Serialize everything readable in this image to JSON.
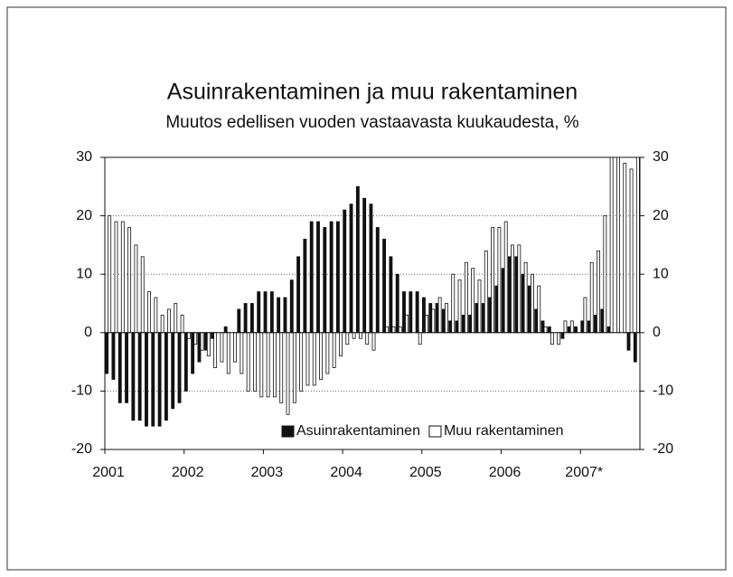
{
  "chart_data": {
    "type": "bar",
    "title": "Asuinrakentaminen ja muu rakentaminen",
    "subtitle": "Muutos edellisen vuoden vastaavasta kuukaudesta, %",
    "categories": [
      "2001",
      null,
      null,
      null,
      null,
      null,
      null,
      null,
      null,
      null,
      null,
      null,
      "2002",
      null,
      null,
      null,
      null,
      null,
      null,
      null,
      null,
      null,
      null,
      null,
      "2003",
      null,
      null,
      null,
      null,
      null,
      null,
      null,
      null,
      null,
      null,
      null,
      "2004",
      null,
      null,
      null,
      null,
      null,
      null,
      null,
      null,
      null,
      null,
      null,
      "2005",
      null,
      null,
      null,
      null,
      null,
      null,
      null,
      null,
      null,
      null,
      null,
      "2006",
      null,
      null,
      null,
      null,
      null,
      null,
      null,
      null,
      null,
      null,
      null,
      "2007*",
      null,
      null,
      null,
      null,
      null,
      null,
      null,
      null
    ],
    "series": [
      {
        "name": "Asuinrakentaminen",
        "color": "#111111",
        "values": [
          -7,
          -8,
          -12,
          -12,
          -15,
          -15,
          -16,
          -16,
          -16,
          -15,
          -13,
          -12,
          -10,
          -7,
          -5,
          -3,
          -1,
          0,
          1,
          0,
          4,
          5,
          5,
          7,
          7,
          7,
          6,
          6,
          9,
          13,
          16,
          19,
          19,
          18,
          19,
          19,
          21,
          22,
          25,
          23,
          22,
          18,
          16,
          13,
          10,
          7,
          7,
          7,
          6,
          5,
          5,
          4,
          2,
          2,
          3,
          3,
          5,
          5,
          6,
          8,
          11,
          13,
          13,
          10,
          8,
          4,
          2,
          1,
          0,
          -1,
          1,
          1,
          2,
          2,
          3,
          4,
          1,
          0,
          0,
          -3,
          -5
        ]
      },
      {
        "name": "Muu rakentaminen",
        "color": "#ffffff",
        "values": [
          20,
          19,
          19,
          18,
          15,
          13,
          7,
          6,
          3,
          4,
          5,
          3,
          -1,
          -2,
          -3,
          -4,
          -6,
          -5,
          -7,
          -5,
          -7,
          -10,
          -10,
          -11,
          -11,
          -11,
          -12,
          -14,
          -12,
          -10,
          -9,
          -9,
          -8,
          -7,
          -6,
          -4,
          -2,
          -1,
          -1,
          -2,
          -3,
          0,
          1,
          1,
          1,
          3,
          0,
          -2,
          3,
          4,
          6,
          5,
          10,
          9,
          12,
          11,
          9,
          14,
          18,
          18,
          19,
          15,
          15,
          12,
          10,
          8,
          1,
          -2,
          -2,
          2,
          2,
          0,
          6,
          12,
          14,
          20,
          30,
          30,
          29,
          28,
          30
        ]
      }
    ],
    "ylim": [
      -20,
      30
    ],
    "yticks": [
      -20,
      -10,
      0,
      10,
      20,
      30
    ],
    "y2lim": [
      -20,
      30
    ],
    "y2ticks": [
      -20,
      -10,
      0,
      10,
      20,
      30
    ],
    "grid": true,
    "legend": "bottom-right"
  }
}
